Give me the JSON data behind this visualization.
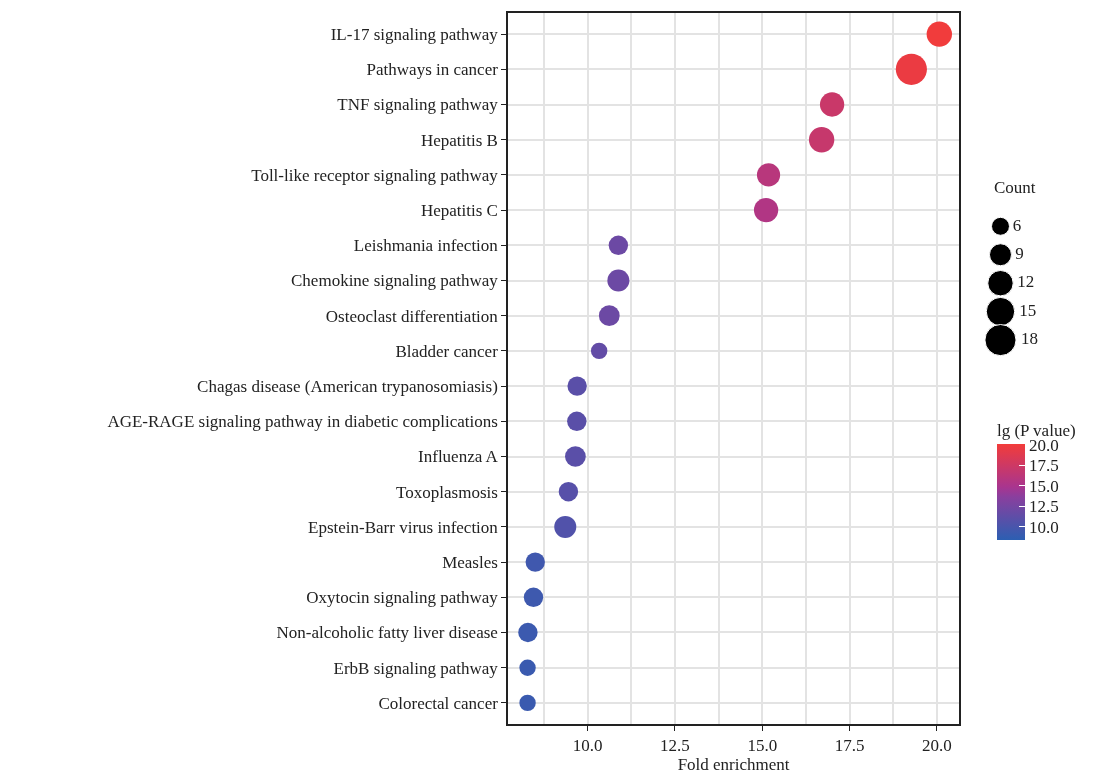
{
  "chart_data": {
    "type": "bubble",
    "xlabel": "Fold enrichment",
    "legend_title": "Count",
    "clabel": "lg (P value)",
    "categories": [
      "IL-17 signaling pathway",
      "Pathways in cancer",
      "TNF signaling pathway",
      "Hepatitis B",
      "Toll-like receptor signaling pathway",
      "Hepatitis C",
      "Leishmania infection",
      "Chemokine signaling pathway",
      "Osteoclast differentiation",
      "Bladder cancer",
      "Chagas disease (American trypanosomiasis)",
      "AGE-RAGE signaling pathway in diabetic complications",
      "Influenza A",
      "Toxoplasmosis",
      "Epstein-Barr virus infection",
      "Measles",
      "Oxytocin signaling pathway",
      "Non-alcoholic fatty liver disease",
      "ErbB signaling pathway",
      "Colorectal cancer"
    ],
    "values": [
      20.07,
      19.27,
      17.0,
      16.7,
      15.18,
      15.11,
      10.88,
      10.88,
      10.62,
      10.33,
      9.7,
      9.69,
      9.65,
      9.45,
      9.36,
      8.5,
      8.45,
      8.29,
      8.28,
      8.28
    ],
    "sizes": [
      12,
      18,
      11,
      12,
      10,
      11,
      7,
      9,
      8,
      5,
      7,
      7,
      8,
      7,
      9,
      7,
      7,
      7,
      5,
      5
    ],
    "cvalues": [
      20,
      19.6,
      17.2,
      17,
      16,
      15.5,
      12,
      12,
      12,
      11.5,
      11,
      11,
      11,
      10.8,
      10.5,
      9.5,
      9.4,
      9.3,
      9.2,
      9.2
    ],
    "size_legend": [
      6,
      9,
      12,
      15,
      18
    ],
    "clim": [
      8.4,
      20.1
    ],
    "cticks": [
      {
        "value": 10,
        "label": "10.0"
      },
      12.5,
      {
        "value": 15,
        "label": "15.0"
      },
      17.5,
      {
        "value": 20,
        "label": "20.0"
      }
    ],
    "orientation": "horizontal",
    "xlim": [
      7.72,
      20.64
    ],
    "xticks": [
      {
        "value": 10,
        "label": "10.0"
      },
      12.5,
      {
        "value": 15,
        "label": "15.0"
      },
      17.5,
      {
        "value": 20,
        "label": "20.0"
      }
    ],
    "grid": true,
    "marker": "circle"
  }
}
